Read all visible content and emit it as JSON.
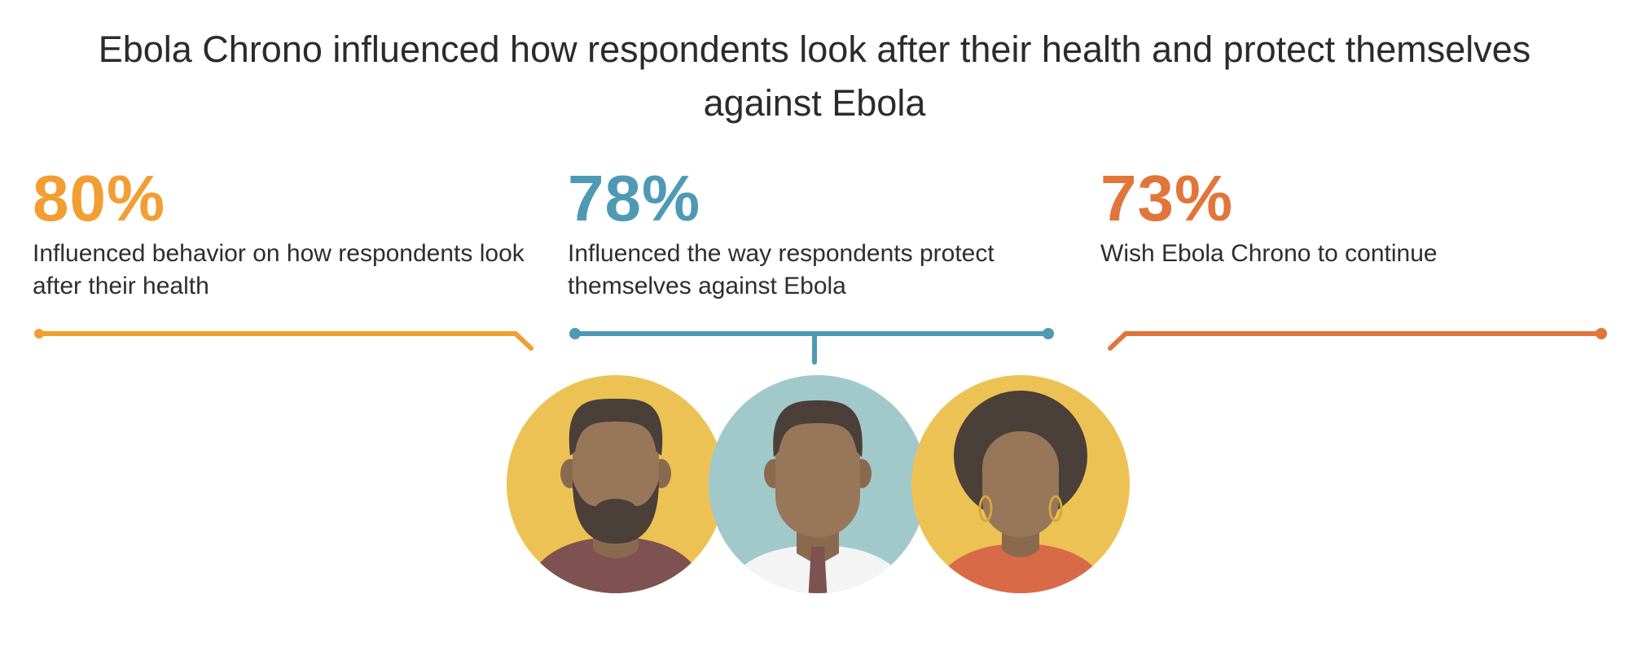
{
  "title": "Ebola Chrono influenced how respondents look after their health and protect themselves against Ebola",
  "colors": {
    "stat1": "#F29E32",
    "stat2": "#4E9AB5",
    "stat3": "#E2753A",
    "skin": "#98765A",
    "hair": "#4A3F39",
    "yellow_circle": "#EDC254",
    "teal_circle": "#A1C9CA"
  },
  "stats": [
    {
      "percent": "80%",
      "description": "Influenced behavior on how respondents look after their health"
    },
    {
      "percent": "78%",
      "description": "Influenced the way respondents protect themselves against Ebola"
    },
    {
      "percent": "73%",
      "description": "Wish Ebola Chrono to continue"
    }
  ],
  "icons": [
    "bearded-man-avatar-icon",
    "man-with-tie-avatar-icon",
    "woman-with-earrings-avatar-icon"
  ]
}
